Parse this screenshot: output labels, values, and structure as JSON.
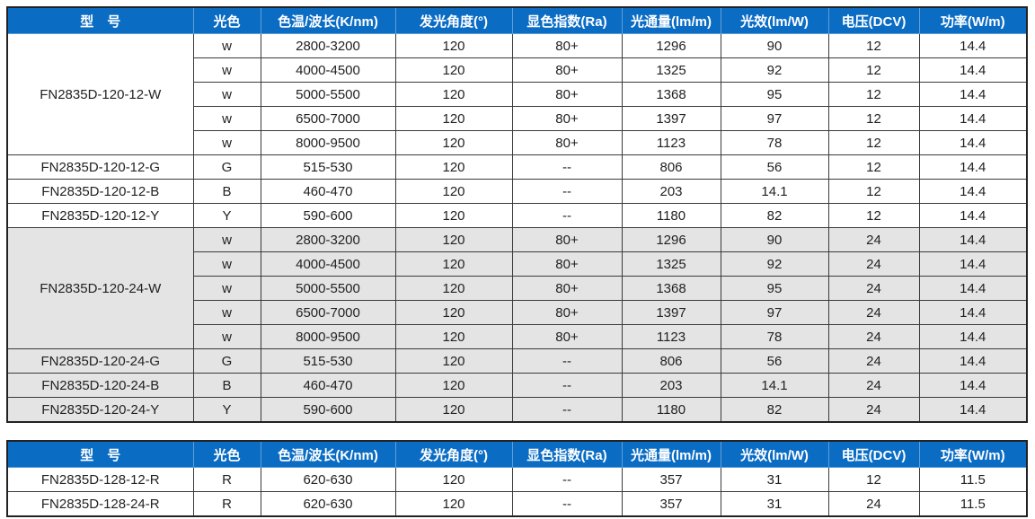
{
  "header": [
    "型　号",
    "光色",
    "色温/波长(K/nm)",
    "发光角度(°)",
    "显色指数(Ra)",
    "光通量(lm/m)",
    "光效(lm/W)",
    "电压(DCV)",
    "功率(W/m)"
  ],
  "table1": {
    "groups": [
      {
        "model": "FN2835D-120-12-W",
        "rows": [
          [
            "w",
            "2800-3200",
            "120",
            "80+",
            "1296",
            "90",
            "12",
            "14.4"
          ],
          [
            "w",
            "4000-4500",
            "120",
            "80+",
            "1325",
            "92",
            "12",
            "14.4"
          ],
          [
            "w",
            "5000-5500",
            "120",
            "80+",
            "1368",
            "95",
            "12",
            "14.4"
          ],
          [
            "w",
            "6500-7000",
            "120",
            "80+",
            "1397",
            "97",
            "12",
            "14.4"
          ],
          [
            "w",
            "8000-9500",
            "120",
            "80+",
            "1123",
            "78",
            "12",
            "14.4"
          ]
        ]
      },
      {
        "model": "FN2835D-120-12-G",
        "rows": [
          [
            "G",
            "515-530",
            "120",
            "--",
            "806",
            "56",
            "12",
            "14.4"
          ]
        ]
      },
      {
        "model": "FN2835D-120-12-B",
        "rows": [
          [
            "B",
            "460-470",
            "120",
            "--",
            "203",
            "14.1",
            "12",
            "14.4"
          ]
        ]
      },
      {
        "model": "FN2835D-120-12-Y",
        "rows": [
          [
            "Y",
            "590-600",
            "120",
            "--",
            "1180",
            "82",
            "12",
            "14.4"
          ]
        ]
      },
      {
        "model": "FN2835D-120-24-W",
        "rows": [
          [
            "w",
            "2800-3200",
            "120",
            "80+",
            "1296",
            "90",
            "24",
            "14.4"
          ],
          [
            "w",
            "4000-4500",
            "120",
            "80+",
            "1325",
            "92",
            "24",
            "14.4"
          ],
          [
            "w",
            "5000-5500",
            "120",
            "80+",
            "1368",
            "95",
            "24",
            "14.4"
          ],
          [
            "w",
            "6500-7000",
            "120",
            "80+",
            "1397",
            "97",
            "24",
            "14.4"
          ],
          [
            "w",
            "8000-9500",
            "120",
            "80+",
            "1123",
            "78",
            "24",
            "14.4"
          ]
        ]
      },
      {
        "model": "FN2835D-120-24-G",
        "rows": [
          [
            "G",
            "515-530",
            "120",
            "--",
            "806",
            "56",
            "24",
            "14.4"
          ]
        ]
      },
      {
        "model": "FN2835D-120-24-B",
        "rows": [
          [
            "B",
            "460-470",
            "120",
            "--",
            "203",
            "14.1",
            "24",
            "14.4"
          ]
        ]
      },
      {
        "model": "FN2835D-120-24-Y",
        "rows": [
          [
            "Y",
            "590-600",
            "120",
            "--",
            "1180",
            "82",
            "24",
            "14.4"
          ]
        ]
      }
    ]
  },
  "table2": {
    "groups": [
      {
        "model": "FN2835D-128-12-R",
        "rows": [
          [
            "R",
            "620-630",
            "120",
            "--",
            "357",
            "31",
            "12",
            "11.5"
          ]
        ]
      },
      {
        "model": "FN2835D-128-24-R",
        "rows": [
          [
            "R",
            "620-630",
            "120",
            "--",
            "357",
            "31",
            "24",
            "11.5"
          ]
        ]
      }
    ]
  },
  "colors": {
    "header_bg": "#0b6cc4",
    "header_text": "#ffffff",
    "shaded_row_bg": "#e4e4e4"
  }
}
